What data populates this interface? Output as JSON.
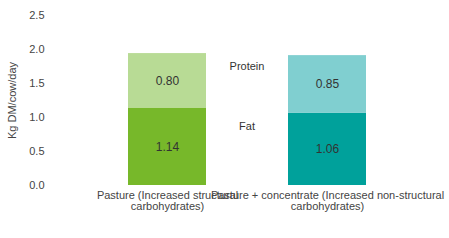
{
  "chart_data": {
    "type": "bar",
    "stacked": true,
    "data_labels": true,
    "y_label": "Kg DM/cow/day",
    "categories": [
      "Pasture (Increased structural carbohydrates)",
      "Pasture + concentrate (Increased non-structural carbohydrates)"
    ],
    "series": [
      {
        "name": "Fat",
        "values": [
          1.14,
          1.06
        ],
        "value_labels": [
          "1.14",
          "1.06"
        ],
        "colors": [
          "#77b82a",
          "#00a19b"
        ]
      },
      {
        "name": "Protein",
        "values": [
          0.8,
          0.85
        ],
        "value_labels": [
          "0.80",
          "0.85"
        ],
        "colors": [
          "#b8db95",
          "#80cfd0"
        ]
      }
    ],
    "ylim": [
      0,
      2.5
    ],
    "yticks": [
      {
        "value": 0,
        "label": "0.0"
      },
      {
        "value": 0.5,
        "label": "0.5"
      },
      {
        "value": 1,
        "label": "1.0"
      },
      {
        "value": 1.5,
        "label": "1.5"
      },
      {
        "value": 2,
        "label": "2.0"
      },
      {
        "value": 2.5,
        "label": "2.5"
      }
    ],
    "grid": false
  }
}
